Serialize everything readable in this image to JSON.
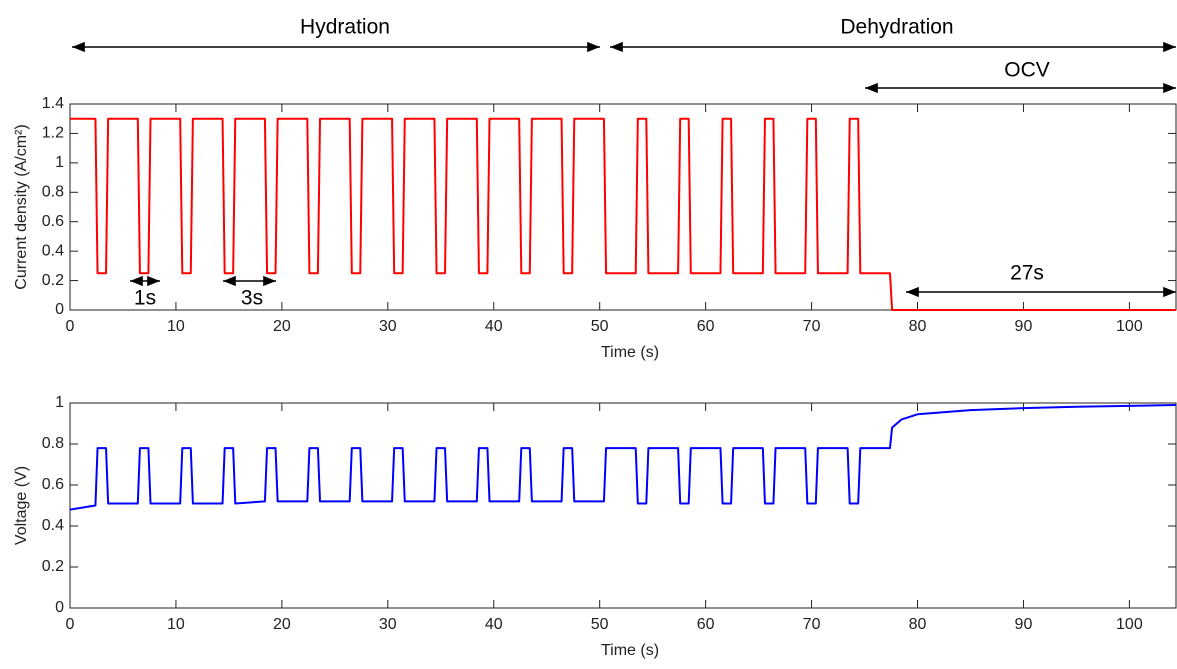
{
  "chart_data": [
    {
      "type": "line",
      "xlabel": "Time (s)",
      "ylabel": "Current density (A/cm²)",
      "color": "#ff0000",
      "annotations": [
        "Hydration",
        "Dehydration",
        "OCV",
        "1s",
        "3s",
        "27s"
      ],
      "x": [
        0,
        2.4,
        2.6,
        3.4,
        3.6,
        6.4,
        6.6,
        7.4,
        7.6,
        10.4,
        10.6,
        11.4,
        11.6,
        14.4,
        14.6,
        15.4,
        15.6,
        18.4,
        18.6,
        19.4,
        19.6,
        22.4,
        22.6,
        23.4,
        23.6,
        26.4,
        26.6,
        27.4,
        27.6,
        30.4,
        30.6,
        31.4,
        31.6,
        34.4,
        34.6,
        35.4,
        35.6,
        38.4,
        38.6,
        39.4,
        39.6,
        42.4,
        42.6,
        43.4,
        43.6,
        46.4,
        46.6,
        47.4,
        47.6,
        50.4,
        50.6,
        53.4,
        53.6,
        54.4,
        54.6,
        57.4,
        57.6,
        58.4,
        58.6,
        61.4,
        61.6,
        62.4,
        62.6,
        65.4,
        65.6,
        66.4,
        66.6,
        69.4,
        69.6,
        70.4,
        70.6,
        73.4,
        73.6,
        74.4,
        74.6,
        77.4,
        77.6,
        104.4
      ],
      "values": [
        1.3,
        1.3,
        0.25,
        0.25,
        1.3,
        1.3,
        0.25,
        0.25,
        1.3,
        1.3,
        0.25,
        0.25,
        1.3,
        1.3,
        0.25,
        0.25,
        1.3,
        1.3,
        0.25,
        0.25,
        1.3,
        1.3,
        0.25,
        0.25,
        1.3,
        1.3,
        0.25,
        0.25,
        1.3,
        1.3,
        0.25,
        0.25,
        1.3,
        1.3,
        0.25,
        0.25,
        1.3,
        1.3,
        0.25,
        0.25,
        1.3,
        1.3,
        0.25,
        0.25,
        1.3,
        1.3,
        0.25,
        0.25,
        1.3,
        1.3,
        0.25,
        0.25,
        1.3,
        1.3,
        0.25,
        0.25,
        1.3,
        1.3,
        0.25,
        0.25,
        1.3,
        1.3,
        0.25,
        0.25,
        1.3,
        1.3,
        0.25,
        0.25,
        1.3,
        1.3,
        0.25,
        0.25,
        1.3,
        1.3,
        0.25,
        0.25,
        0,
        0
      ],
      "xlim": [
        0,
        104.4
      ],
      "xticks": [
        0,
        10,
        20,
        30,
        40,
        50,
        60,
        70,
        80,
        90,
        100
      ],
      "ylim": [
        0,
        1.4
      ],
      "yticks": [
        0,
        0.2,
        0.4,
        0.6,
        0.8,
        1,
        1.2,
        1.4
      ]
    },
    {
      "type": "line",
      "xlabel": "Time (s)",
      "ylabel": "Voltage (V)",
      "color": "#0000ff",
      "x": [
        0,
        2.4,
        2.6,
        3.4,
        3.6,
        6.4,
        6.6,
        7.4,
        7.6,
        10.4,
        10.6,
        11.4,
        11.6,
        14.4,
        14.6,
        15.4,
        15.6,
        18.4,
        18.6,
        19.4,
        19.6,
        22.4,
        22.6,
        23.4,
        23.6,
        26.4,
        26.6,
        27.4,
        27.6,
        30.4,
        30.6,
        31.4,
        31.6,
        34.4,
        34.6,
        35.4,
        35.6,
        38.4,
        38.6,
        39.4,
        39.6,
        42.4,
        42.6,
        43.4,
        43.6,
        46.4,
        46.6,
        47.4,
        47.6,
        50.4,
        50.6,
        53.4,
        53.6,
        54.4,
        54.6,
        57.4,
        57.6,
        58.4,
        58.6,
        61.4,
        61.6,
        62.4,
        62.6,
        65.4,
        65.6,
        66.4,
        66.6,
        69.4,
        69.6,
        70.4,
        70.6,
        73.4,
        73.6,
        74.4,
        74.6,
        77.4,
        77.6,
        78.5,
        80,
        85,
        90,
        95,
        104.4
      ],
      "values": [
        0.48,
        0.5,
        0.78,
        0.78,
        0.51,
        0.51,
        0.78,
        0.78,
        0.51,
        0.51,
        0.78,
        0.78,
        0.51,
        0.51,
        0.78,
        0.78,
        0.51,
        0.52,
        0.78,
        0.78,
        0.52,
        0.52,
        0.78,
        0.78,
        0.52,
        0.52,
        0.78,
        0.78,
        0.52,
        0.52,
        0.78,
        0.78,
        0.52,
        0.52,
        0.78,
        0.78,
        0.52,
        0.52,
        0.78,
        0.78,
        0.52,
        0.52,
        0.78,
        0.78,
        0.52,
        0.52,
        0.78,
        0.78,
        0.52,
        0.52,
        0.78,
        0.78,
        0.51,
        0.51,
        0.78,
        0.78,
        0.51,
        0.51,
        0.78,
        0.78,
        0.51,
        0.51,
        0.78,
        0.78,
        0.51,
        0.51,
        0.78,
        0.78,
        0.51,
        0.51,
        0.78,
        0.78,
        0.51,
        0.51,
        0.78,
        0.78,
        0.88,
        0.92,
        0.945,
        0.965,
        0.975,
        0.982,
        0.99
      ],
      "xlim": [
        0,
        104.4
      ],
      "xticks": [
        0,
        10,
        20,
        30,
        40,
        50,
        60,
        70,
        80,
        90,
        100
      ],
      "ylim": [
        0,
        1
      ],
      "yticks": [
        0,
        0.2,
        0.4,
        0.6,
        0.8,
        1
      ]
    }
  ]
}
